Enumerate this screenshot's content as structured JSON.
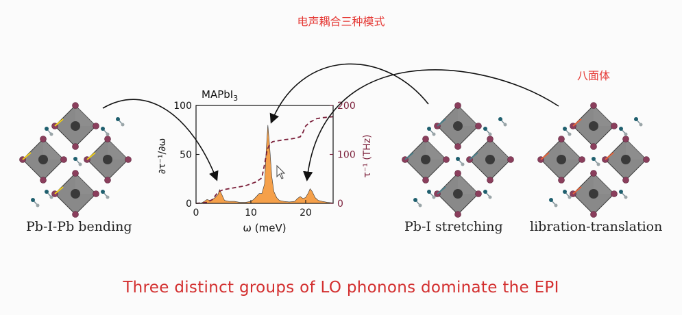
{
  "slide": {
    "title_cn": "电声耦合三种模式",
    "label_octahedron": "八面体",
    "bottom_text": "Three distinct groups of LO phonons dominate the EPI"
  },
  "structures": [
    {
      "caption": "Pb-I-Pb bending",
      "bond_color": "#f2d019"
    },
    {
      "caption": "Pb-I stretching",
      "bond_color": "#4a7f8a"
    },
    {
      "caption": "libration-translation",
      "bond_color": "#e8643a"
    }
  ],
  "chart_data": {
    "type": "area",
    "title": "MAPbI3",
    "xlabel": "ω (meV)",
    "ylabel_left": "∂τ⁻¹/∂ω",
    "ylabel_right": "τ⁻¹ (THz)",
    "xlim": [
      0,
      25
    ],
    "ylim_left": [
      0,
      100
    ],
    "ylim_right": [
      0,
      200
    ],
    "xticks": [
      "0",
      "10",
      "20"
    ],
    "yticks_left": [
      "0",
      "50",
      "100"
    ],
    "yticks_right": [
      "0",
      "100",
      "200"
    ],
    "spectrum": {
      "color": "#f5a04a",
      "x": [
        0,
        1,
        1.5,
        2,
        2.5,
        3,
        3.5,
        4,
        4.3,
        4.7,
        5.2,
        6,
        7,
        8,
        9,
        10,
        10.5,
        11,
        11.5,
        12,
        12.5,
        12.8,
        13.1,
        13.4,
        13.8,
        14.2,
        14.7,
        15.2,
        16,
        17,
        18,
        18.5,
        19,
        19.5,
        20,
        20.5,
        20.8,
        21.2,
        21.7,
        22.3,
        23,
        24,
        25
      ],
      "y": [
        0,
        0.5,
        2,
        4,
        3,
        4,
        6,
        9,
        14,
        9,
        3,
        2,
        2,
        1,
        1,
        2,
        4,
        7,
        10,
        10,
        20,
        55,
        80,
        60,
        28,
        12,
        6,
        3,
        2,
        1.5,
        2,
        5,
        7,
        5,
        6,
        11,
        15,
        12,
        6,
        3,
        2,
        1,
        0.5
      ]
    },
    "cumulative": {
      "color": "#7b1f3a",
      "x": [
        0,
        2,
        3,
        3.8,
        4.3,
        5,
        7,
        9,
        10,
        11,
        12,
        12.5,
        13,
        13.5,
        14,
        15,
        16,
        17,
        18,
        19,
        19.5,
        20,
        20.8,
        21.5,
        22,
        23,
        24,
        25
      ],
      "y": [
        0,
        2,
        8,
        20,
        25,
        28,
        32,
        36,
        40,
        44,
        52,
        80,
        110,
        122,
        126,
        128,
        130,
        131,
        133,
        136,
        145,
        158,
        166,
        170,
        173,
        175,
        176,
        177
      ]
    }
  }
}
